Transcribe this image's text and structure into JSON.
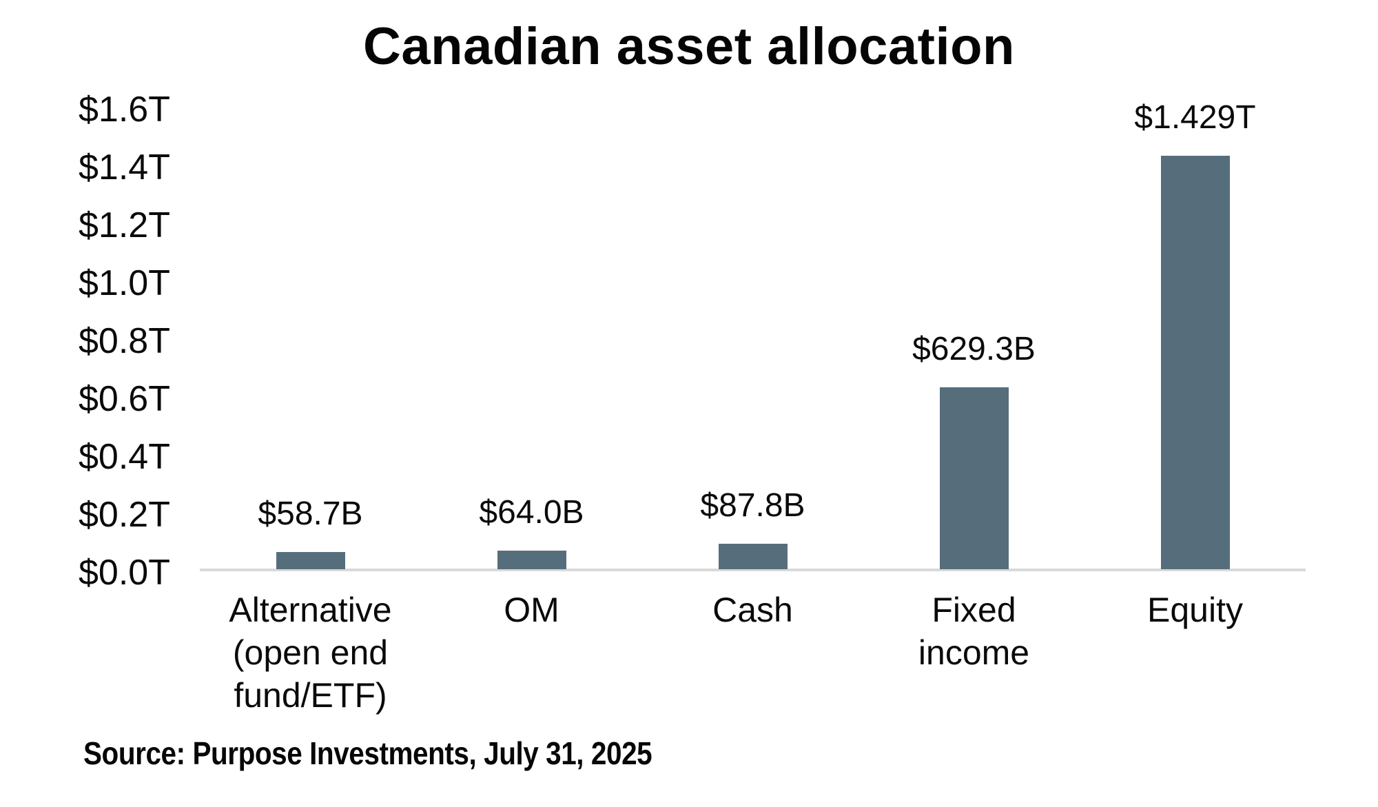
{
  "chart_data": {
    "type": "bar",
    "title": "Canadian asset allocation",
    "categories": [
      "Alternative\n(open end\nfund/ETF)",
      "OM",
      "Cash",
      "Fixed\nincome",
      "Equity"
    ],
    "values_billions": [
      58.7,
      64.0,
      87.8,
      629.3,
      1429.0
    ],
    "data_labels": [
      "$58.7B",
      "$64.0B",
      "$87.8B",
      "$629.3B",
      "$1.429T"
    ],
    "y_ticks": [
      "$0.0T",
      "$0.2T",
      "$0.4T",
      "$0.6T",
      "$0.8T",
      "$1.0T",
      "$1.2T",
      "$1.4T",
      "$1.6T"
    ],
    "ylim_trillions": [
      0,
      1.6
    ],
    "y_tick_step_trillions": 0.2,
    "xlabel": "",
    "ylabel": "",
    "grid": false,
    "legend": false,
    "bar_color": "#566e7c",
    "axis_line_color": "#d9d9d9",
    "text_color": "#0a0a0a",
    "background_color": "#ffffff",
    "source": "Source: Purpose Investments, July 31, 2025"
  }
}
